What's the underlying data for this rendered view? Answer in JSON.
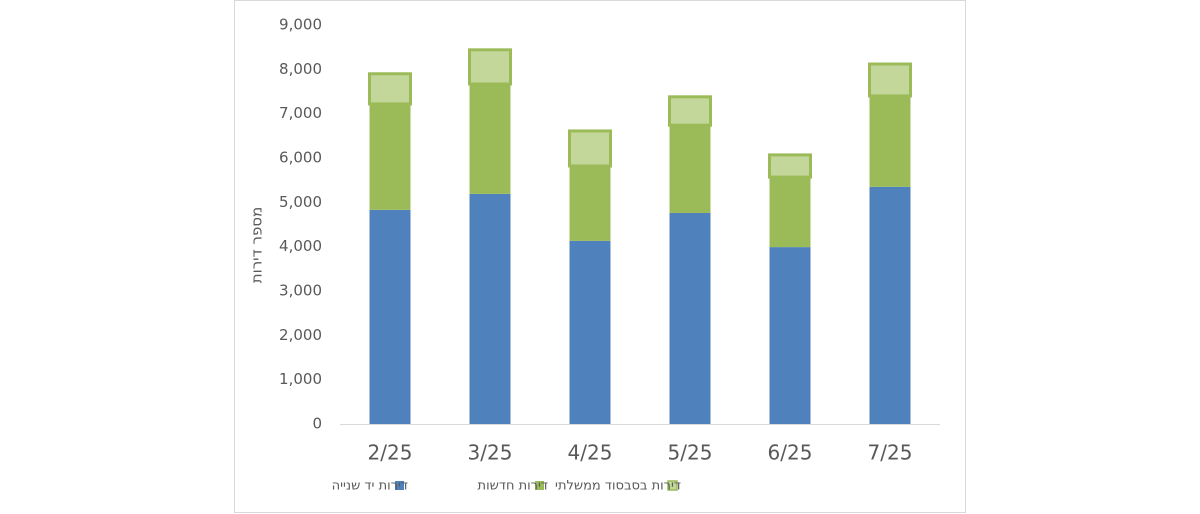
{
  "chart_data": {
    "type": "stacked_bar",
    "y_label": "מספר דירות",
    "categories": [
      "2/25",
      "3/25",
      "4/25",
      "5/25",
      "6/25",
      "7/25"
    ],
    "series": [
      {
        "name": "דירות יד שנייה",
        "color": "#4f81bd",
        "values": [
          4830,
          5190,
          4130,
          4760,
          3990,
          5350
        ]
      },
      {
        "name": "דירות חדשות",
        "color": "#9bbb59",
        "values": [
          2390,
          2480,
          1690,
          1980,
          1580,
          2050
        ]
      },
      {
        "name": "דירות בסבסוד ממשלתי",
        "color": "#c4d79b",
        "edge_color": "#9bbb59",
        "values": [
          680,
          770,
          790,
          640,
          500,
          720
        ]
      }
    ],
    "ylim": [
      0,
      9000
    ],
    "yticks": [
      0,
      {
        "value": 1000,
        "label": "1,000"
      },
      {
        "value": 2000,
        "label": "2,000"
      },
      {
        "value": 3000,
        "label": "3,000"
      },
      {
        "value": 4000,
        "label": "4,000"
      },
      {
        "value": 5000,
        "label": "5,000"
      },
      {
        "value": 6000,
        "label": "6,000"
      },
      {
        "value": 7000,
        "label": "7,000"
      },
      {
        "value": 8000,
        "label": "8,000"
      },
      {
        "value": 9000,
        "label": "9,000"
      }
    ],
    "grid": false
  }
}
